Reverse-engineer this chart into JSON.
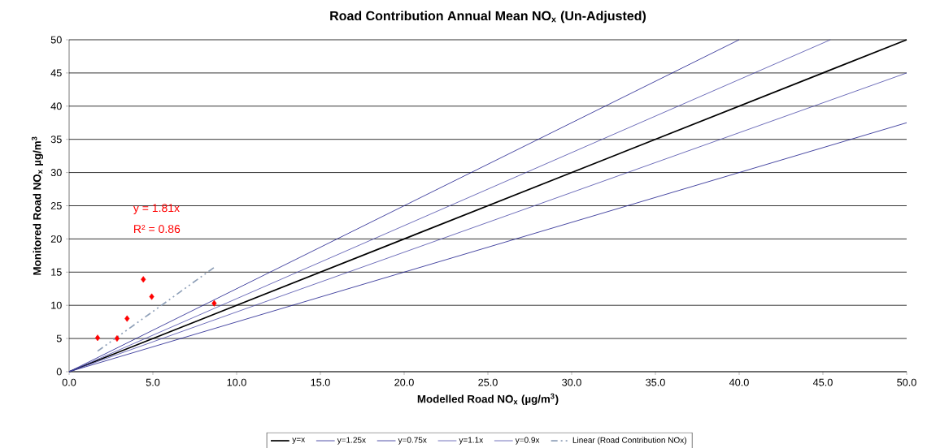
{
  "chart_data": {
    "type": "scatter",
    "title": "Road Contribution Annual Mean NO$_{x}$ (Un-Adjusted)",
    "xlabel": "Modelled Road NO$_{x}$ (µg/m$^{3}$)",
    "ylabel": "Monitored Road NO$_{x}$ µg/m$^{3}$",
    "xlim": [
      0,
      50
    ],
    "ylim": [
      0,
      50
    ],
    "xticks": [
      {
        "value": 0,
        "label": "0.0"
      },
      {
        "value": 5,
        "label": "5.0"
      },
      {
        "value": 10,
        "label": "10.0"
      },
      {
        "value": 15,
        "label": "15.0"
      },
      {
        "value": 20,
        "label": "20.0"
      },
      {
        "value": 25,
        "label": "25.0"
      },
      {
        "value": 30,
        "label": "30.0"
      },
      {
        "value": 35,
        "label": "35.0"
      },
      {
        "value": 40,
        "label": "40.0"
      },
      {
        "value": 45,
        "label": "45.0"
      },
      {
        "value": 50,
        "label": "50.0"
      }
    ],
    "yticks": [
      0,
      5,
      10,
      15,
      20,
      25,
      30,
      35,
      40,
      45,
      50
    ],
    "grid": "y",
    "legend": "bottom",
    "annotations": [
      "y = 1.81x",
      "R² = 0.86"
    ],
    "series": [
      {
        "color": "#ff0000",
        "marker": "diamond",
        "x": [
          1.7,
          2.86,
          3.46,
          4.43,
          4.93,
          8.66
        ],
        "values": [
          5.1,
          5.0,
          8.0,
          13.9,
          11.3,
          10.3
        ]
      },
      {
        "type": "line",
        "name": "y=x",
        "color": "#000000",
        "marker": "none",
        "line_style": "solid",
        "x": [
          0,
          50
        ],
        "values": [
          0,
          50
        ]
      },
      {
        "type": "line",
        "name": "y=1.25x",
        "color": "#1c1c8c",
        "marker": "none",
        "line_style": "solid",
        "x": [
          0,
          40
        ],
        "values": [
          0,
          50
        ]
      },
      {
        "type": "line",
        "name": "y=0.75x",
        "color": "#1c1c8c",
        "marker": "none",
        "line_style": "solid",
        "x": [
          0,
          50
        ],
        "values": [
          0,
          37.5
        ]
      },
      {
        "type": "line",
        "name": "y=1.1x",
        "color": "#4a4aa8",
        "marker": "none",
        "line_style": "solid",
        "x": [
          0,
          45.45
        ],
        "values": [
          0,
          50
        ]
      },
      {
        "type": "line",
        "name": "y=0.9x",
        "color": "#4a4aa8",
        "marker": "none",
        "line_style": "solid",
        "x": [
          0,
          50
        ],
        "values": [
          0,
          45
        ]
      },
      {
        "type": "line",
        "name": "Linear (Road Contribution NOx)",
        "color": "#8fa0b8",
        "marker": "none",
        "line_style": "dashdot",
        "x": [
          1.7,
          8.66
        ],
        "values": [
          3.1,
          15.7
        ]
      }
    ]
  }
}
